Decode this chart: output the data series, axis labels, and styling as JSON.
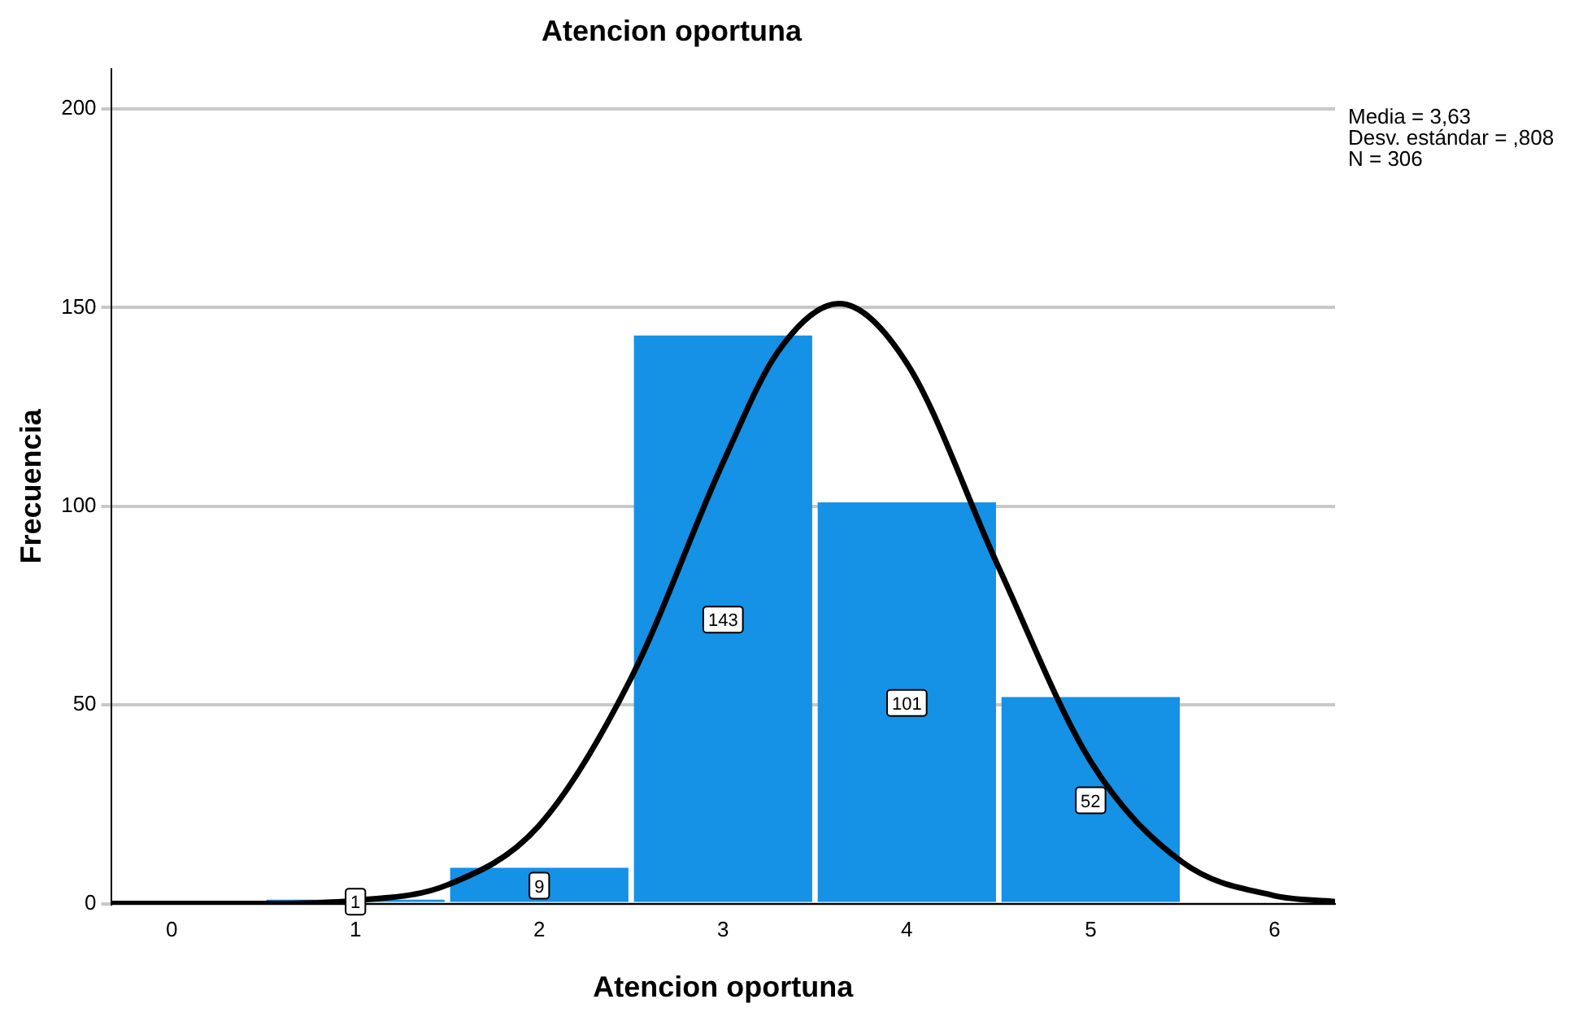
{
  "chart_data": {
    "type": "histogram",
    "title": "Atencion oportuna",
    "xlabel": "Atencion oportuna",
    "ylabel": "Frecuencia",
    "bins": [
      0.5,
      1.5,
      2.5,
      3.5,
      4.5,
      5.5
    ],
    "values": [
      1,
      9,
      143,
      101,
      52
    ],
    "color": "#1591e6",
    "value_labels": [
      "1",
      "9",
      "143",
      "101",
      "52"
    ],
    "series": [
      {
        "type": "line",
        "color": "#000000",
        "x": [
          -0.33,
          0,
          0.5,
          1,
          1.5,
          2,
          2.5,
          3,
          3.3,
          3.63,
          4,
          4.5,
          5,
          5.5,
          6,
          6.33
        ],
        "values": [
          0,
          0,
          0,
          0.8,
          4.7,
          19.7,
          56.8,
          111,
          139,
          151,
          136,
          84.6,
          35.8,
          10.4,
          2,
          0.5
        ]
      }
    ],
    "xlim": [
      -0.33,
      6.33
    ],
    "xticks": [
      0,
      1,
      2,
      3,
      4,
      5,
      6
    ],
    "ylim": [
      0,
      210
    ],
    "yticks": [
      0,
      50,
      100,
      150,
      200
    ],
    "grid": "y",
    "legend": false,
    "marker": "none",
    "line_style": "solid",
    "annotations": [
      "Media = 3,63",
      "Desv. estándar = ,808",
      "N = 306"
    ]
  }
}
